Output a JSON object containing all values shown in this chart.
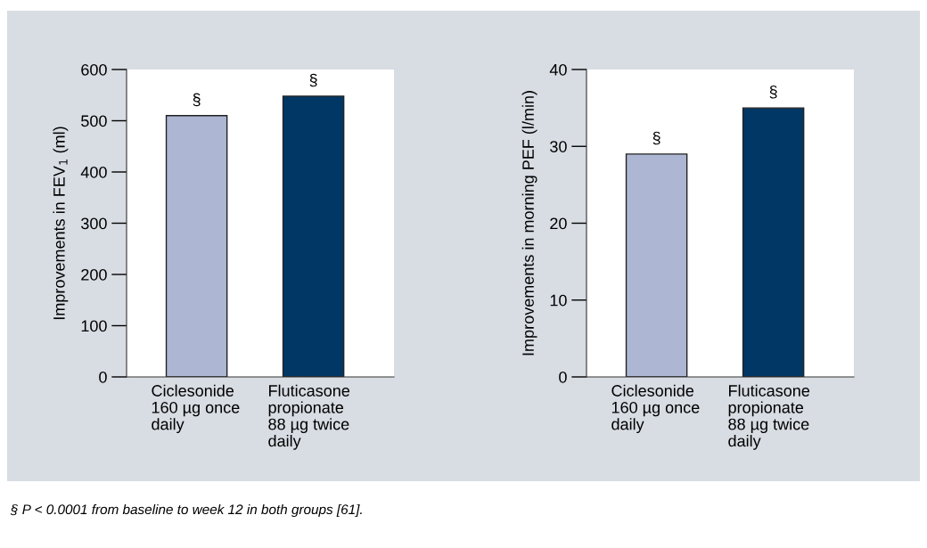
{
  "chart_data": [
    {
      "type": "bar",
      "categories": [
        "Ciclesonide\n160 µg once\ndaily",
        "Fluticasone\npropionate\n88 µg twice\ndaily"
      ],
      "values": [
        510,
        548
      ],
      "colors": [
        "#adb7d4",
        "#003764"
      ],
      "value_labels": [
        "§",
        "§"
      ],
      "ylabel": "Improvements in FEV$_{1}$ (ml)",
      "ylim": [
        0,
        600
      ],
      "yticks": [
        0,
        100,
        200,
        300,
        400,
        500,
        600
      ],
      "grid": false,
      "legend": false
    },
    {
      "type": "bar",
      "categories": [
        "Ciclesonide\n160 µg once\ndaily",
        "Fluticasone\npropionate\n88 µg twice\ndaily"
      ],
      "values": [
        29,
        35
      ],
      "colors": [
        "#adb7d4",
        "#003764"
      ],
      "value_labels": [
        "§",
        "§"
      ],
      "ylabel": "Improvements in morning PEF (l/min)",
      "ylim": [
        0,
        40
      ],
      "yticks": [
        0,
        10,
        20,
        30,
        40
      ],
      "grid": false,
      "legend": false,
      "annotations": [
        "§ P < 0.0001 from baseline to week 12 in both groups [61]."
      ]
    }
  ]
}
